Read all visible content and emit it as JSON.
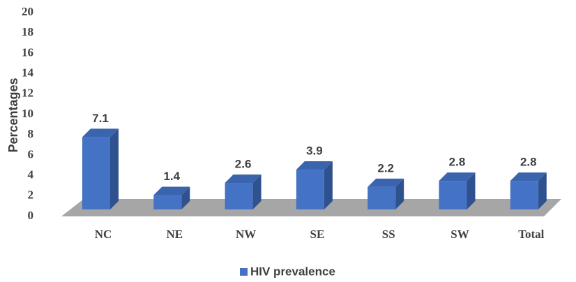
{
  "chart_data": {
    "type": "bar",
    "y_label": "Percentages",
    "categories": [
      "NC",
      "NE",
      "NW",
      "SE",
      "SS",
      "SW",
      "Total"
    ],
    "series": [
      {
        "name": "HIV prevalence",
        "color": "#4472c4",
        "values": [
          7.1,
          1.4,
          2.6,
          3.9,
          2.2,
          2.8,
          2.8
        ]
      }
    ],
    "ylim": [
      0,
      20
    ],
    "yticks": [
      0,
      2,
      4,
      6,
      8,
      10,
      12,
      14,
      16,
      18,
      20
    ],
    "legend": "bottom"
  }
}
